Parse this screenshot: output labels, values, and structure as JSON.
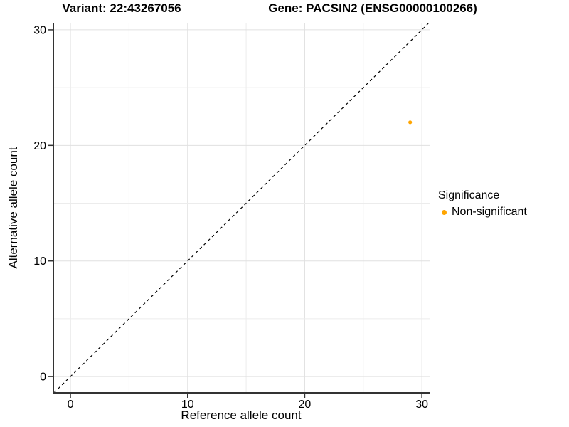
{
  "chart_data": {
    "type": "scatter",
    "title_left": "Variant: 22:43267056",
    "title_right": "Gene: PACSIN2 (ENSG00000100266)",
    "xlabel": "Reference allele count",
    "ylabel": "Alternative allele count",
    "xlim": [
      -1.46,
      30.66
    ],
    "ylim": [
      -1.41,
      30.55
    ],
    "x_ticks": [
      0,
      10,
      20,
      30
    ],
    "y_ticks": [
      0,
      10,
      20,
      30
    ],
    "x_gridlines": [
      0,
      5,
      10,
      15,
      20,
      25,
      30
    ],
    "y_gridlines": [
      0,
      5,
      10,
      15,
      20,
      25,
      30
    ],
    "grid": true,
    "identity_line": {
      "slope": 1,
      "intercept": 0,
      "style": "dashed",
      "color": "#000000"
    },
    "series": [
      {
        "name": "Non-significant",
        "color": "#FFA500",
        "points": [
          {
            "x": 29,
            "y": 22
          }
        ]
      }
    ],
    "legend": {
      "title": "Significance",
      "position": "right",
      "items": [
        {
          "label": "Non-significant",
          "color": "#FFA500"
        }
      ]
    }
  },
  "style": {
    "background": "#FFFFFF",
    "gridline_major": "#E0E0E0",
    "gridline_minor": "#ECECEC",
    "axis_color": "#333333",
    "text_color": "#000000"
  }
}
